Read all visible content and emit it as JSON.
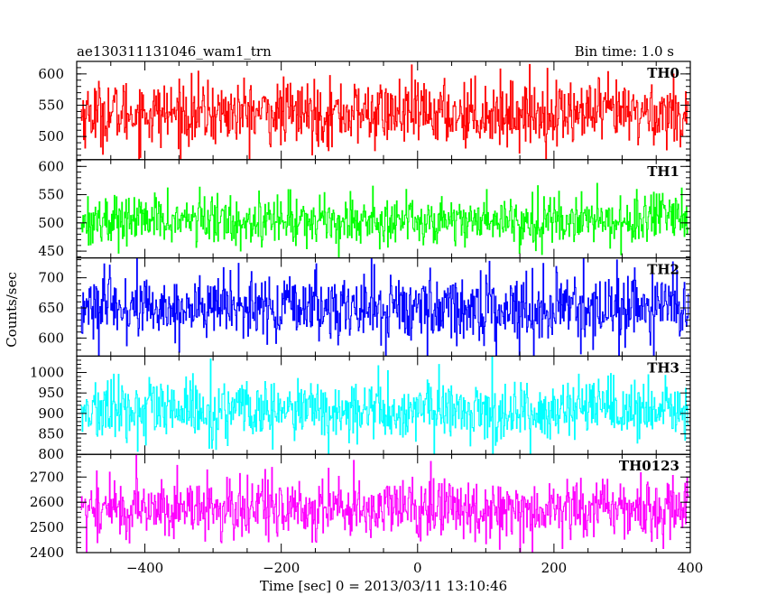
{
  "header": {
    "title": "ae130311131046_wam1_trn",
    "bin_time": "Bin time: 1.0 s"
  },
  "axes": {
    "xlabel": "Time [sec] 0 = 2013/03/11 13:10:46",
    "ylabel": "Counts/sec"
  },
  "chart_data": {
    "type": "line",
    "x_range": [
      -500,
      400
    ],
    "x_axis": {
      "xlim": [
        -500,
        400
      ],
      "ticks": [
        -400,
        -200,
        0,
        200,
        400
      ],
      "tick_labels": [
        "−400",
        "−200",
        "0",
        "200",
        "400"
      ],
      "minor_step": 50
    },
    "x_step": 1.0,
    "panels": [
      {
        "name": "TH0",
        "color": "#ff0000",
        "ylim": [
          463,
          620
        ],
        "ticks": [
          500,
          550,
          600
        ],
        "minor_step": 10,
        "mean": 537,
        "noise": 26,
        "min": 463,
        "max": 620
      },
      {
        "name": "TH1",
        "color": "#00ff00",
        "ylim": [
          438,
          612
        ],
        "ticks": [
          450,
          500,
          550,
          600
        ],
        "minor_step": 10,
        "mean": 505,
        "noise": 22,
        "min": 440,
        "max": 600
      },
      {
        "name": "TH2",
        "color": "#0000ff",
        "ylim": [
          570,
          733
        ],
        "ticks": [
          600,
          650,
          700
        ],
        "minor_step": 10,
        "mean": 650,
        "noise": 28,
        "min": 570,
        "max": 733
      },
      {
        "name": "TH3",
        "color": "#00ffff",
        "ylim": [
          800,
          1040
        ],
        "ticks": [
          800,
          850,
          900,
          950,
          1000
        ],
        "minor_step": 10,
        "mean": 905,
        "noise": 38,
        "min": 800,
        "max": 1040
      },
      {
        "name": "TH0123",
        "color": "#ff00ff",
        "ylim": [
          2400,
          2790
        ],
        "ticks": [
          2400,
          2500,
          2600,
          2700
        ],
        "minor_step": 20,
        "mean": 2575,
        "noise": 62,
        "min": 2400,
        "max": 2790
      }
    ]
  }
}
